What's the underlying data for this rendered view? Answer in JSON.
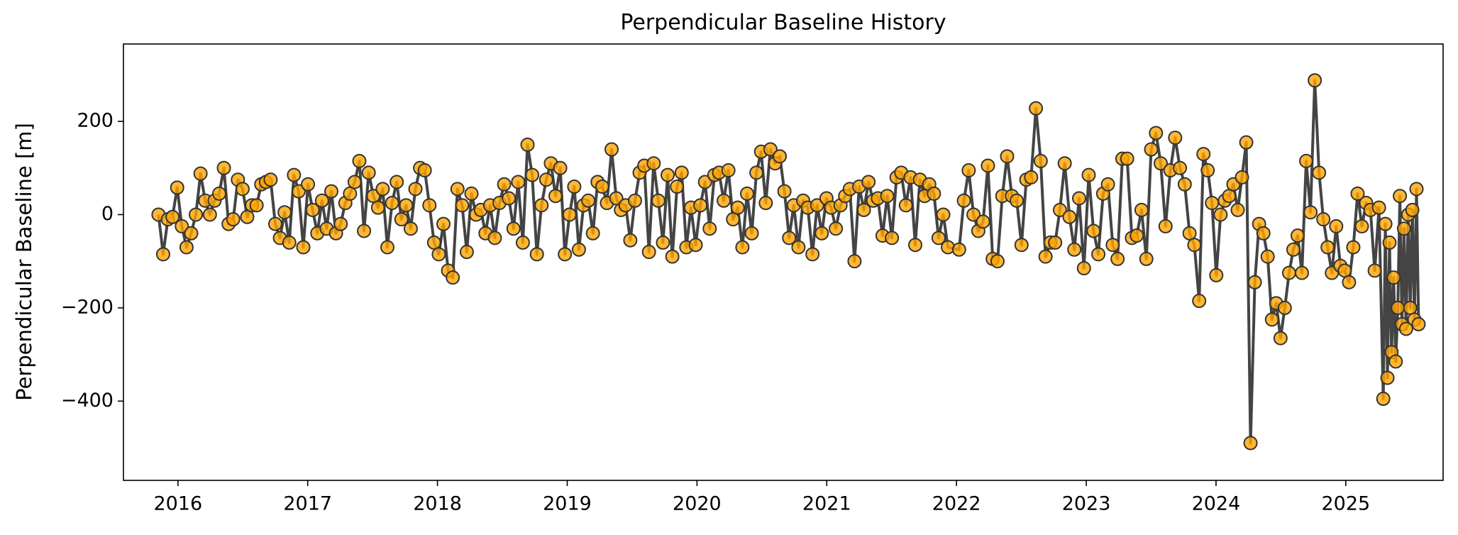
{
  "chart_data": {
    "type": "line",
    "title": "Perpendicular Baseline History",
    "y_label": "Perpendicular Baseline [m]",
    "line_color": "#444444",
    "marker_color": "#ffa500",
    "marker_edge_color": "#333333",
    "grid": false,
    "xlim": [
      2015.58,
      2025.75
    ],
    "xticks": [
      2016,
      2017,
      2018,
      2019,
      2020,
      2021,
      2022,
      2023,
      2024,
      2025
    ],
    "ylim": [
      -570,
      366
    ],
    "yticks": [
      {
        "value": -400,
        "label": "−400"
      },
      {
        "value": -200,
        "label": "−200"
      },
      0,
      200
    ],
    "x": [
      2015.85,
      2015.886,
      2015.922,
      2015.958,
      2015.994,
      2016.03,
      2016.066,
      2016.102,
      2016.138,
      2016.174,
      2016.21,
      2016.246,
      2016.282,
      2016.318,
      2016.354,
      2016.39,
      2016.426,
      2016.462,
      2016.498,
      2016.534,
      2016.57,
      2016.606,
      2016.642,
      2016.678,
      2016.714,
      2016.75,
      2016.786,
      2016.822,
      2016.858,
      2016.894,
      2016.93,
      2016.966,
      2017.002,
      2017.038,
      2017.074,
      2017.11,
      2017.146,
      2017.182,
      2017.218,
      2017.254,
      2017.29,
      2017.326,
      2017.362,
      2017.398,
      2017.434,
      2017.47,
      2017.506,
      2017.542,
      2017.578,
      2017.614,
      2017.65,
      2017.686,
      2017.722,
      2017.758,
      2017.794,
      2017.83,
      2017.866,
      2017.902,
      2017.938,
      2017.974,
      2018.01,
      2018.046,
      2018.082,
      2018.118,
      2018.154,
      2018.19,
      2018.226,
      2018.262,
      2018.298,
      2018.334,
      2018.37,
      2018.406,
      2018.442,
      2018.478,
      2018.514,
      2018.55,
      2018.586,
      2018.622,
      2018.658,
      2018.694,
      2018.73,
      2018.766,
      2018.802,
      2018.838,
      2018.874,
      2018.91,
      2018.946,
      2018.982,
      2019.018,
      2019.054,
      2019.09,
      2019.126,
      2019.162,
      2019.198,
      2019.234,
      2019.27,
      2019.306,
      2019.342,
      2019.378,
      2019.414,
      2019.45,
      2019.486,
      2019.522,
      2019.558,
      2019.594,
      2019.63,
      2019.666,
      2019.702,
      2019.738,
      2019.774,
      2019.81,
      2019.846,
      2019.882,
      2019.918,
      2019.954,
      2019.99,
      2020.026,
      2020.062,
      2020.098,
      2020.134,
      2020.17,
      2020.206,
      2020.242,
      2020.278,
      2020.314,
      2020.35,
      2020.386,
      2020.422,
      2020.458,
      2020.494,
      2020.53,
      2020.566,
      2020.602,
      2020.638,
      2020.674,
      2020.71,
      2020.746,
      2020.782,
      2020.818,
      2020.854,
      2020.89,
      2020.926,
      2020.962,
      2020.998,
      2021.034,
      2021.07,
      2021.106,
      2021.142,
      2021.178,
      2021.214,
      2021.25,
      2021.286,
      2021.322,
      2021.358,
      2021.394,
      2021.43,
      2021.466,
      2021.502,
      2021.538,
      2021.574,
      2021.61,
      2021.646,
      2021.682,
      2021.718,
      2021.754,
      2021.79,
      2021.826,
      2021.862,
      2021.898,
      2021.934,
      2022.02,
      2022.057,
      2022.094,
      2022.131,
      2022.168,
      2022.205,
      2022.242,
      2022.279,
      2022.316,
      2022.353,
      2022.39,
      2022.427,
      2022.464,
      2022.501,
      2022.538,
      2022.575,
      2022.612,
      2022.649,
      2022.686,
      2022.723,
      2022.76,
      2022.797,
      2022.834,
      2022.871,
      2022.908,
      2022.945,
      2022.982,
      2023.019,
      2023.056,
      2023.093,
      2023.13,
      2023.167,
      2023.204,
      2023.241,
      2023.278,
      2023.315,
      2023.352,
      2023.389,
      2023.426,
      2023.463,
      2023.5,
      2023.537,
      2023.574,
      2023.611,
      2023.648,
      2023.685,
      2023.722,
      2023.759,
      2023.796,
      2023.833,
      2023.87,
      2023.903,
      2023.936,
      2023.969,
      2024.002,
      2024.035,
      2024.068,
      2024.101,
      2024.134,
      2024.167,
      2024.2,
      2024.233,
      2024.266,
      2024.299,
      2024.332,
      2024.365,
      2024.398,
      2024.431,
      2024.464,
      2024.497,
      2024.53,
      2024.563,
      2024.596,
      2024.629,
      2024.662,
      2024.695,
      2024.728,
      2024.761,
      2024.794,
      2024.827,
      2024.86,
      2024.893,
      2024.926,
      2024.959,
      2024.992,
      2025.025,
      2025.058,
      2025.091,
      2025.124,
      2025.157,
      2025.19,
      2025.223,
      2025.256,
      2025.289,
      2025.305,
      2025.321,
      2025.337,
      2025.353,
      2025.369,
      2025.385,
      2025.401,
      2025.417,
      2025.433,
      2025.449,
      2025.465,
      2025.481,
      2025.497,
      2025.513,
      2025.529,
      2025.545,
      2025.561
    ],
    "values": [
      0,
      -85,
      -10,
      -5,
      58,
      -25,
      -70,
      -40,
      0,
      88,
      30,
      0,
      30,
      45,
      100,
      -20,
      -10,
      75,
      55,
      -5,
      20,
      20,
      65,
      70,
      75,
      -20,
      -50,
      5,
      -60,
      85,
      50,
      -70,
      65,
      10,
      -40,
      30,
      -30,
      50,
      -40,
      -20,
      25,
      45,
      70,
      115,
      -35,
      90,
      40,
      15,
      55,
      -70,
      25,
      70,
      -10,
      20,
      -30,
      55,
      100,
      95,
      20,
      -60,
      -85,
      -20,
      -120,
      -135,
      55,
      20,
      -80,
      45,
      0,
      10,
      -40,
      20,
      -50,
      25,
      65,
      35,
      -30,
      70,
      -60,
      150,
      85,
      -85,
      20,
      75,
      110,
      40,
      100,
      -85,
      0,
      60,
      -75,
      20,
      30,
      -40,
      70,
      60,
      25,
      140,
      35,
      10,
      20,
      -55,
      30,
      90,
      105,
      -80,
      110,
      30,
      -60,
      85,
      -90,
      60,
      90,
      -70,
      15,
      -65,
      20,
      70,
      -30,
      85,
      90,
      30,
      95,
      -10,
      15,
      -70,
      45,
      -40,
      90,
      135,
      25,
      140,
      110,
      125,
      50,
      -50,
      20,
      -70,
      30,
      15,
      -85,
      20,
      -40,
      35,
      15,
      -30,
      20,
      40,
      55,
      -100,
      60,
      10,
      70,
      30,
      35,
      -45,
      40,
      -50,
      80,
      90,
      20,
      80,
      -65,
      75,
      40,
      65,
      45,
      -50,
      0,
      -70,
      -75,
      30,
      95,
      0,
      -35,
      -15,
      105,
      -95,
      -100,
      40,
      125,
      40,
      30,
      -65,
      75,
      80,
      228,
      115,
      -90,
      -60,
      -60,
      10,
      110,
      -5,
      -75,
      35,
      -115,
      85,
      -35,
      -85,
      45,
      65,
      -65,
      -95,
      120,
      120,
      -50,
      -45,
      10,
      -95,
      140,
      175,
      110,
      -25,
      95,
      165,
      100,
      65,
      -40,
      -65,
      -185,
      130,
      95,
      25,
      -130,
      0,
      30,
      40,
      65,
      10,
      80,
      155,
      -490,
      -145,
      -20,
      -40,
      -90,
      -225,
      -190,
      -265,
      -200,
      -125,
      -75,
      -45,
      -125,
      115,
      5,
      288,
      90,
      -10,
      -70,
      -125,
      -25,
      -110,
      -120,
      -145,
      -70,
      45,
      -25,
      25,
      10,
      -120,
      15,
      -395,
      -20,
      -350,
      -60,
      -295,
      -135,
      -315,
      -200,
      40,
      -235,
      -30,
      -245,
      0,
      -200,
      10,
      -225,
      55,
      -235
    ]
  }
}
